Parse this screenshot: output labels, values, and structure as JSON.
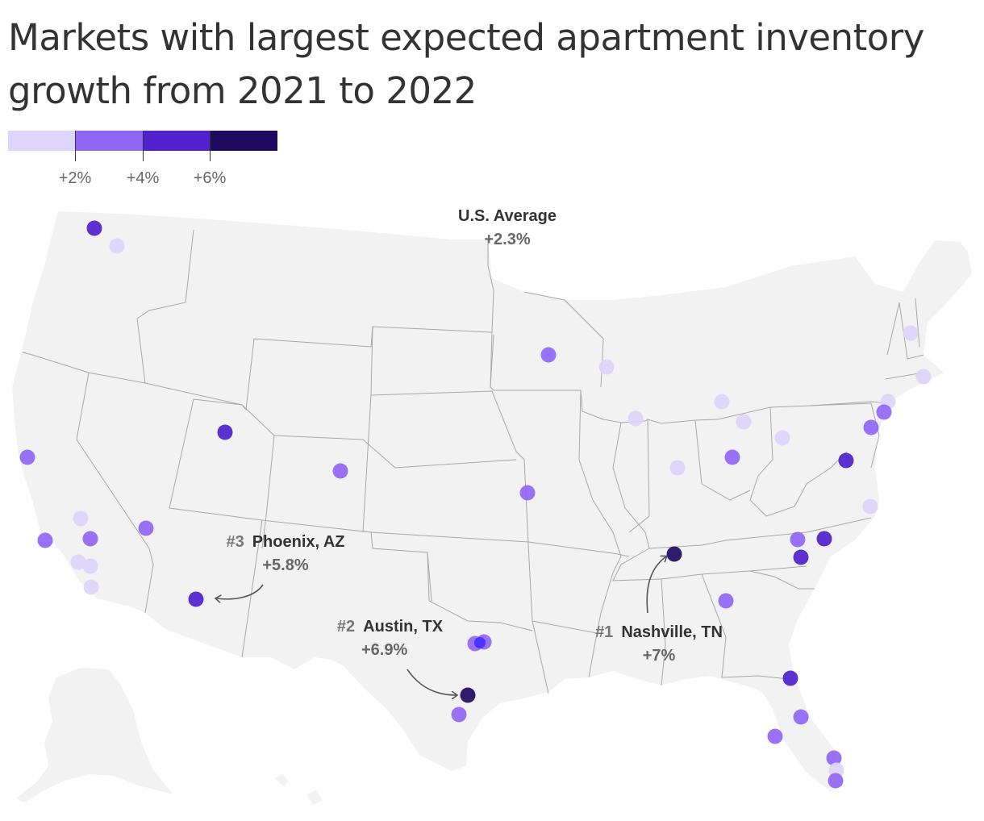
{
  "title": "Markets with largest expected apartment inventory growth from 2021 to 2022",
  "legend": {
    "colors": [
      "#ddd5fa",
      "#9066f5",
      "#5021cc",
      "#1e0a5e"
    ],
    "ticks": [
      "+2%",
      "+4%",
      "+6%"
    ]
  },
  "us_average": {
    "label": "U.S. Average",
    "value": "+2.3%"
  },
  "annotations": [
    {
      "rank": "#1",
      "name": "Nashville, TN",
      "value": "+7%"
    },
    {
      "rank": "#2",
      "name": "Austin, TX",
      "value": "+6.9%"
    },
    {
      "rank": "#3",
      "name": "Phoenix, AZ",
      "value": "+5.8%"
    }
  ],
  "colors": {
    "land": "#f2f2f2",
    "border": "#a8a8a8",
    "bin1": "#ddd5fa",
    "bin2": "#9066f5",
    "bin3": "#5021cc",
    "bin4": "#1e0a5e",
    "texas_highlight": "#3b2bff"
  }
}
